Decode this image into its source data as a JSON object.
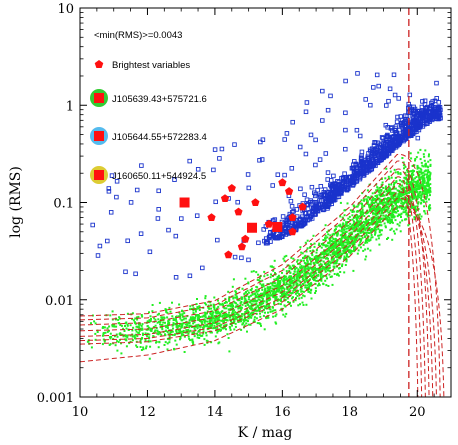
{
  "chart_data": {
    "type": "scatter",
    "xlabel": "K / mag",
    "ylabel": "log (RMS)",
    "xlim": [
      10,
      21
    ],
    "ylim": [
      0.001,
      10
    ],
    "yscale": "log",
    "x_ticks": [
      "10",
      "12",
      "14",
      "16",
      "18",
      "20"
    ],
    "x_tick_values": [
      10,
      12,
      14,
      16,
      18,
      20
    ],
    "y_ticks": [
      "0.001",
      "0.01",
      "0.1",
      "1",
      "10"
    ],
    "y_tick_values": [
      0.001,
      0.01,
      0.1,
      1,
      10
    ],
    "annotation": "<min(RMS)>=0.0043",
    "vline_x": 19.75,
    "colors": {
      "constant_stars": "#22ee22",
      "variable_candidates": "#1a33cc",
      "brightest_variables": "#ff1010",
      "model_curves": "#cc2222",
      "vline": "#cc2222"
    },
    "legend": {
      "entries": [
        {
          "label": "Brightest variables",
          "marker": "pentagon",
          "color": "#ff1010"
        },
        {
          "label": "J105639.43+575721.6",
          "marker": "square-with-halo",
          "color": "#ff1010",
          "halo": "#33cc33"
        },
        {
          "label": "J105644.55+572283.4",
          "marker": "square-with-halo",
          "color": "#ff1010",
          "halo": "#55bbee"
        },
        {
          "label": "J160650.11+544924.5",
          "marker": "square-with-halo",
          "color": "#ff1010",
          "halo": "#ddcc33"
        }
      ]
    },
    "brightest_variables": [
      {
        "x": 13.9,
        "y": 0.07
      },
      {
        "x": 14.3,
        "y": 0.11
      },
      {
        "x": 14.5,
        "y": 0.14
      },
      {
        "x": 14.7,
        "y": 0.08
      },
      {
        "x": 14.4,
        "y": 0.029
      },
      {
        "x": 14.8,
        "y": 0.035
      },
      {
        "x": 15.2,
        "y": 0.1
      },
      {
        "x": 15.6,
        "y": 0.06
      },
      {
        "x": 16.0,
        "y": 0.16
      },
      {
        "x": 16.2,
        "y": 0.13
      },
      {
        "x": 16.3,
        "y": 0.07
      },
      {
        "x": 16.3,
        "y": 0.05
      },
      {
        "x": 16.6,
        "y": 0.09
      },
      {
        "x": 14.9,
        "y": 0.042
      }
    ],
    "highlighted_variables": [
      {
        "name": "J105639.43+575721.6",
        "x": 15.1,
        "y": 0.055
      },
      {
        "name": "J105644.55+572283.4",
        "x": 15.85,
        "y": 0.056
      },
      {
        "name": "J160650.11+544924.5",
        "x": 13.1,
        "y": 0.1
      }
    ],
    "model_curves": [
      {
        "name": "",
        "x": [
          10,
          12,
          14,
          16,
          18,
          19.5
        ],
        "y": [
          0.0042,
          0.0044,
          0.0058,
          0.012,
          0.045,
          0.17
        ]
      },
      {
        "name": "",
        "x": [
          10,
          12,
          14,
          16,
          18,
          19.5
        ],
        "y": [
          0.0048,
          0.005,
          0.0066,
          0.014,
          0.052,
          0.2
        ]
      },
      {
        "name": "",
        "x": [
          10,
          12,
          14,
          16,
          18,
          19.5
        ],
        "y": [
          0.0055,
          0.0058,
          0.0077,
          0.017,
          0.064,
          0.24
        ]
      },
      {
        "name": "",
        "x": [
          10,
          12,
          14,
          16,
          18,
          19.5
        ],
        "y": [
          0.0062,
          0.0065,
          0.0088,
          0.02,
          0.078,
          0.29
        ]
      },
      {
        "name": "",
        "x": [
          10,
          12,
          14,
          16,
          18,
          19.5
        ],
        "y": [
          0.0038,
          0.004,
          0.0052,
          0.0105,
          0.038,
          0.14
        ]
      },
      {
        "name": "",
        "x": [
          10,
          12,
          14,
          16,
          18,
          19.5
        ],
        "y": [
          0.0035,
          0.0037,
          0.0048,
          0.0095,
          0.033,
          0.12
        ]
      },
      {
        "name": "",
        "x": [
          10,
          12,
          14,
          16,
          18,
          19.5
        ],
        "y": [
          0.0068,
          0.0072,
          0.0098,
          0.023,
          0.09,
          0.34
        ]
      },
      {
        "name": "",
        "x": [
          10,
          12,
          14,
          16,
          18,
          19.5
        ],
        "y": [
          0.0023,
          0.0027,
          0.0038,
          0.008,
          0.028,
          0.1
        ]
      }
    ],
    "constant_stars_trend": {
      "x": [
        10.2,
        12,
        14,
        16,
        17,
        18,
        19,
        20.4
      ],
      "y": [
        0.0045,
        0.0047,
        0.0062,
        0.013,
        0.022,
        0.045,
        0.09,
        0.17
      ]
    },
    "variable_candidates_trend": {
      "x": [
        15.5,
        16.5,
        17.5,
        18.5,
        19.5,
        20.5
      ],
      "y": [
        0.04,
        0.06,
        0.11,
        0.22,
        0.45,
        0.8
      ]
    }
  }
}
